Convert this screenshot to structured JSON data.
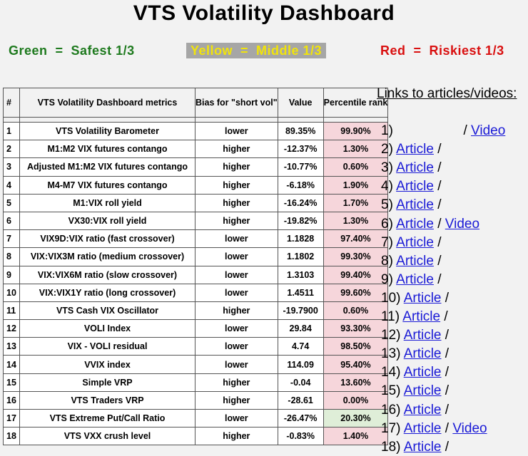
{
  "title": "VTS Volatility Dashboard",
  "legend": {
    "green": "Green  =  Safest 1/3",
    "yellow": "Yellow  =  Middle 1/3",
    "red": "Red  =  Riskiest 1/3"
  },
  "colors": {
    "green": "#1e7a1e",
    "yellow": "#f2e40a",
    "red": "#d91010",
    "pct_red_bg": "#f6d6db",
    "pct_green_bg": "#dfeed8",
    "link": "#1a1ad6"
  },
  "table": {
    "headers": {
      "num": "#",
      "metric": "VTS Volatility Dashboard metrics",
      "bias": "Bias for \"short vol\"",
      "value": "Value",
      "pct": "Percentile rank"
    },
    "rows": [
      {
        "num": "1",
        "metric": "VTS Volatility Barometer",
        "bias": "lower",
        "value": "89.35%",
        "pct": "99.90%",
        "color": "red"
      },
      {
        "num": "2",
        "metric": "M1:M2 VIX futures contango",
        "bias": "higher",
        "value": "-12.37%",
        "pct": "1.30%",
        "color": "red"
      },
      {
        "num": "3",
        "metric": "Adjusted M1:M2 VIX futures contango",
        "bias": "higher",
        "value": "-10.77%",
        "pct": "0.60%",
        "color": "red"
      },
      {
        "num": "4",
        "metric": "M4-M7 VIX futures contango",
        "bias": "higher",
        "value": "-6.18%",
        "pct": "1.90%",
        "color": "red"
      },
      {
        "num": "5",
        "metric": "M1:VIX roll yield",
        "bias": "higher",
        "value": "-16.24%",
        "pct": "1.70%",
        "color": "red"
      },
      {
        "num": "6",
        "metric": "VX30:VIX roll yield",
        "bias": "higher",
        "value": "-19.82%",
        "pct": "1.30%",
        "color": "red"
      },
      {
        "num": "7",
        "metric": "VIX9D:VIX ratio  (fast crossover)",
        "bias": "lower",
        "value": "1.1828",
        "pct": "97.40%",
        "color": "red"
      },
      {
        "num": "8",
        "metric": "VIX:VIX3M ratio  (medium crossover)",
        "bias": "lower",
        "value": "1.1802",
        "pct": "99.30%",
        "color": "red"
      },
      {
        "num": "9",
        "metric": "VIX:VIX6M ratio  (slow crossover)",
        "bias": "lower",
        "value": "1.3103",
        "pct": "99.40%",
        "color": "red"
      },
      {
        "num": "10",
        "metric": "VIX:VIX1Y ratio  (long crossover)",
        "bias": "lower",
        "value": "1.4511",
        "pct": "99.60%",
        "color": "red"
      },
      {
        "num": "11",
        "metric": "VTS Cash VIX Oscillator",
        "bias": "higher",
        "value": "-19.7900",
        "pct": "0.60%",
        "color": "red"
      },
      {
        "num": "12",
        "metric": "VOLI Index",
        "bias": "lower",
        "value": "29.84",
        "pct": "93.30%",
        "color": "red"
      },
      {
        "num": "13",
        "metric": "VIX - VOLI residual",
        "bias": "lower",
        "value": "4.74",
        "pct": "98.50%",
        "color": "red"
      },
      {
        "num": "14",
        "metric": "VVIX index",
        "bias": "lower",
        "value": "114.09",
        "pct": "95.40%",
        "color": "red"
      },
      {
        "num": "15",
        "metric": "Simple VRP",
        "bias": "higher",
        "value": "-0.04",
        "pct": "13.60%",
        "color": "red"
      },
      {
        "num": "16",
        "metric": "VTS Traders VRP",
        "bias": "higher",
        "value": "-28.61",
        "pct": "0.00%",
        "color": "red"
      },
      {
        "num": "17",
        "metric": "VTS Extreme Put/Call Ratio",
        "bias": "lower",
        "value": "-26.47%",
        "pct": "20.30%",
        "color": "green"
      },
      {
        "num": "18",
        "metric": "VTS VXX crush level",
        "bias": "higher",
        "value": "-0.83%",
        "pct": "1.40%",
        "color": "red"
      }
    ]
  },
  "links": {
    "title": "Links to articles/videos:",
    "separator": "/",
    "rows": [
      {
        "num": "1)",
        "article": "",
        "video": "Video"
      },
      {
        "num": "2)",
        "article": "Article",
        "video": ""
      },
      {
        "num": "3)",
        "article": "Article",
        "video": ""
      },
      {
        "num": "4)",
        "article": "Article",
        "video": ""
      },
      {
        "num": "5)",
        "article": "Article",
        "video": ""
      },
      {
        "num": "6)",
        "article": "Article",
        "video": "Video"
      },
      {
        "num": "7)",
        "article": "Article",
        "video": ""
      },
      {
        "num": "8)",
        "article": "Article",
        "video": ""
      },
      {
        "num": "9)",
        "article": "Article",
        "video": ""
      },
      {
        "num": "10)",
        "article": "Article",
        "video": ""
      },
      {
        "num": "11)",
        "article": "Article",
        "video": ""
      },
      {
        "num": "12)",
        "article": "Article",
        "video": ""
      },
      {
        "num": "13)",
        "article": "Article",
        "video": ""
      },
      {
        "num": "14)",
        "article": "Article",
        "video": ""
      },
      {
        "num": "15)",
        "article": "Article",
        "video": ""
      },
      {
        "num": "16)",
        "article": "Article",
        "video": ""
      },
      {
        "num": "17)",
        "article": "Article",
        "video": "Video"
      },
      {
        "num": "18)",
        "article": "Article",
        "video": ""
      }
    ]
  }
}
